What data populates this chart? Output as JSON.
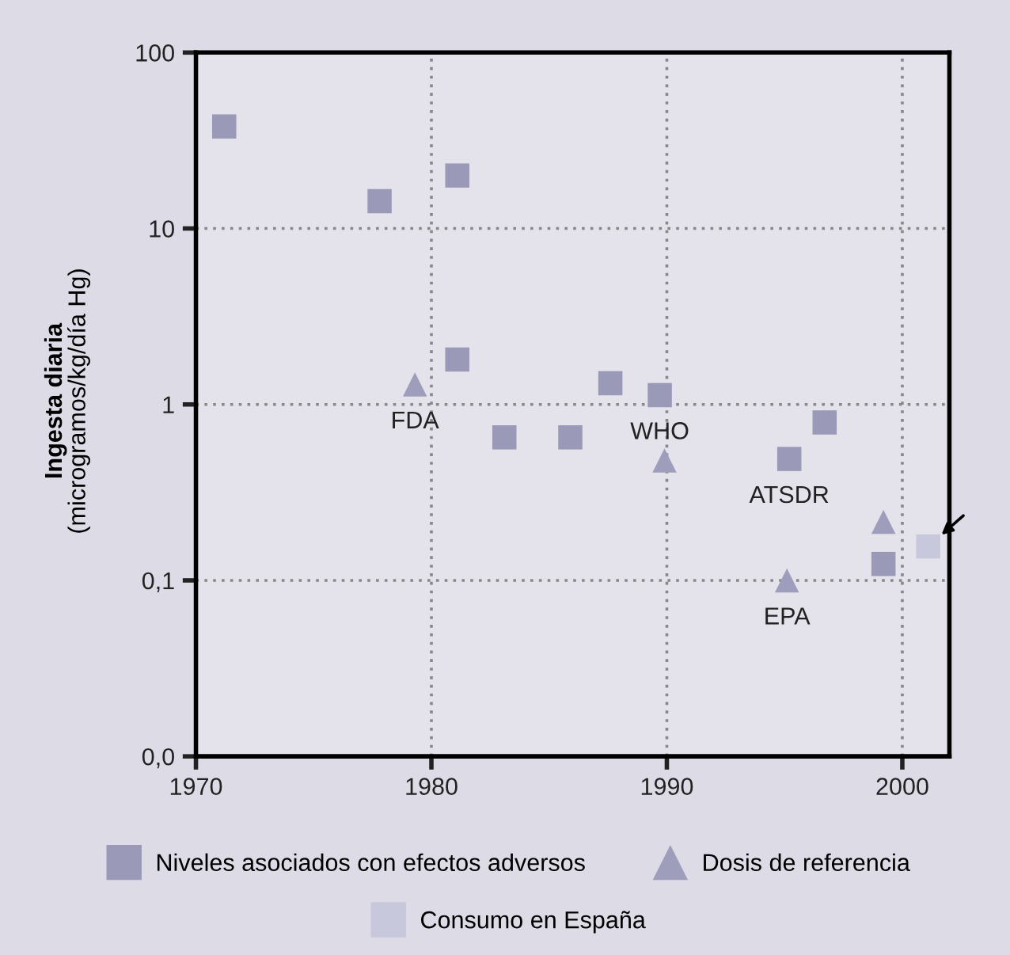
{
  "chart_data": {
    "type": "scatter",
    "ylabel": "Ingesta diaria\n(microgramos/kg/día Hg)",
    "log": "y",
    "xlim": [
      1970,
      2002
    ],
    "xticks": [
      1970,
      1980,
      1990,
      2000
    ],
    "ylim": [
      0.01,
      100
    ],
    "yticks": [
      {
        "value": 0.01,
        "label": "0,0"
      },
      {
        "value": 0.1,
        "label": "0,1"
      },
      1,
      10,
      100
    ],
    "grid": true,
    "legend": "bottom",
    "series": [
      {
        "name": "Niveles asociados con efectos adversos",
        "color": "#9a9ab8",
        "marker": "square",
        "x": [
          1971.2,
          1977.8,
          1981.1,
          1981.1,
          1983.1,
          1985.9,
          1987.6,
          1989.7,
          1995.2,
          1996.7,
          1999.2
        ],
        "values": [
          38,
          14.3,
          20,
          1.8,
          0.65,
          0.65,
          1.32,
          1.13,
          0.49,
          0.79,
          0.124
        ]
      },
      {
        "name": "Dosis de referencia",
        "color": "#9e9ebc",
        "marker": "triangle",
        "x": [
          1979.3,
          1989.9,
          1995.1,
          1999.2
        ],
        "values": [
          1.3,
          0.48,
          0.1,
          0.215
        ]
      },
      {
        "name": "Consumo en España",
        "color": "#c8c8dc",
        "marker": "square",
        "x": [
          2001.1
        ],
        "values": [
          0.156
        ]
      }
    ],
    "annotations": [
      {
        "text": "FDA",
        "x": 1979.3,
        "y": 1.3
      },
      {
        "text": "WHO",
        "x": 1989.7,
        "y": 1.13
      },
      {
        "text": "ATSDR",
        "x": 1995.2,
        "y": 0.49
      },
      {
        "text": "EPA",
        "x": 1995.1,
        "y": 0.1
      }
    ]
  }
}
